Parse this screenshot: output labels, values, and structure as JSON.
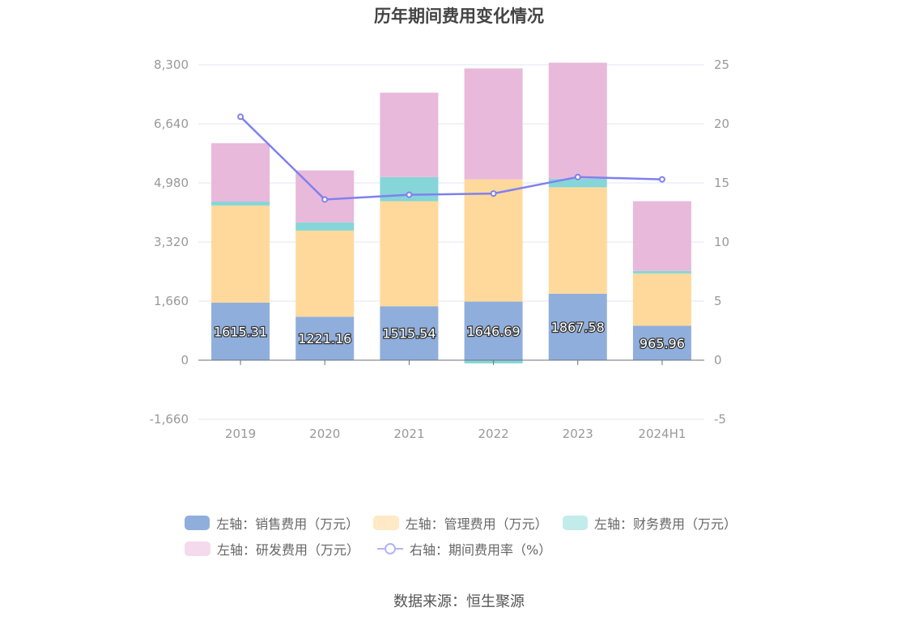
{
  "title": "历年期间费用变化情况",
  "source": "数据来源：恒生聚源",
  "chart_data": {
    "type": "bar",
    "stacked": true,
    "categories": [
      "2019",
      "2020",
      "2021",
      "2022",
      "2023",
      "2024H1"
    ],
    "y_left": {
      "ticks": [
        "8,300",
        "6,640",
        "4,980",
        "3,320",
        "1,660",
        "0",
        "-1,660"
      ],
      "ylim": [
        -1660,
        8300
      ]
    },
    "y_right": {
      "ticks": [
        "25",
        "20",
        "15",
        "10",
        "5",
        "0",
        "-5"
      ],
      "ylim": [
        -5,
        25
      ]
    },
    "series": [
      {
        "name": "左轴：销售费用（万元）",
        "axis": "left",
        "type": "bar",
        "color": "#8FAEDC",
        "values": [
          1615.31,
          1221.16,
          1515.54,
          1646.69,
          1867.58,
          965.96
        ],
        "labels": [
          "1615.31",
          "1221.16",
          "1515.54",
          "1646.69",
          "1867.58",
          "965.96"
        ]
      },
      {
        "name": "左轴：管理费用（万元）",
        "axis": "left",
        "type": "bar",
        "color": "#FFD99B",
        "values": [
          2730,
          2420,
          2950,
          3430,
          2990,
          1470
        ]
      },
      {
        "name": "左轴：财务费用（万元）",
        "axis": "left",
        "type": "bar",
        "color": "#86D5D8",
        "values": [
          110,
          230,
          680,
          -90,
          240,
          70
        ]
      },
      {
        "name": "左轴：研发费用（万元）",
        "axis": "left",
        "type": "bar",
        "color": "#E8B9DA",
        "values": [
          1640,
          1460,
          2370,
          3120,
          3260,
          1960
        ]
      },
      {
        "name": "右轴：期间费用率（%）",
        "axis": "right",
        "type": "line",
        "color": "#8080EE",
        "values": [
          20.6,
          13.6,
          14.0,
          14.1,
          15.5,
          15.3
        ]
      }
    ],
    "legend_position": "bottom",
    "grid": true
  }
}
